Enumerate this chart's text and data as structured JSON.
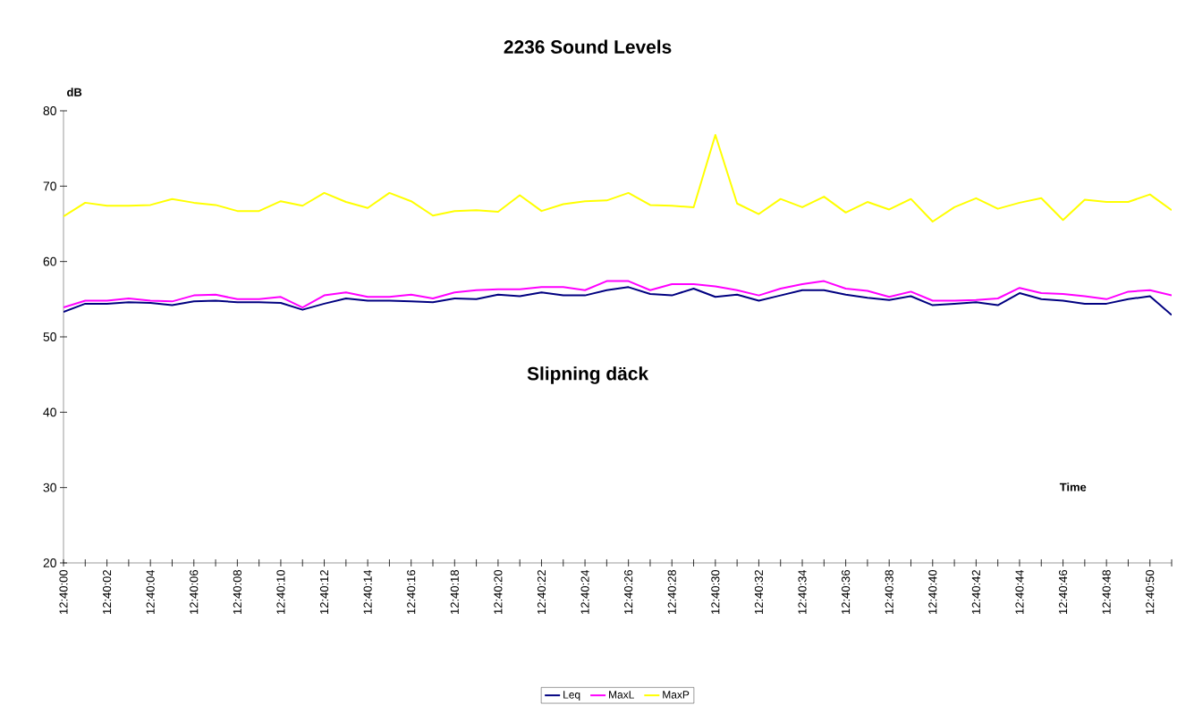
{
  "chart_data": {
    "type": "line",
    "title": "2236 Sound Levels",
    "ylabel": "dB",
    "xlabel": "Time",
    "annotations": [
      "Slipning däck"
    ],
    "categories": [
      "12:40:00",
      null,
      "12:40:02",
      null,
      "12:40:04",
      null,
      "12:40:06",
      null,
      "12:40:08",
      null,
      "12:40:10",
      null,
      "12:40:12",
      null,
      "12:40:14",
      null,
      "12:40:16",
      null,
      "12:40:18",
      null,
      "12:40:20",
      null,
      "12:40:22",
      null,
      "12:40:24",
      null,
      "12:40:26",
      null,
      "12:40:28",
      null,
      "12:40:30",
      null,
      "12:40:32",
      null,
      "12:40:34",
      null,
      "12:40:36",
      null,
      "12:40:38",
      null,
      "12:40:40",
      null,
      "12:40:42",
      null,
      "12:40:44",
      null,
      "12:40:46",
      null,
      "12:40:48",
      null,
      "12:40:50",
      null
    ],
    "series": [
      {
        "name": "Leq",
        "color": "#000080",
        "values": [
          53.3,
          54.4,
          54.4,
          54.6,
          54.5,
          54.2,
          54.7,
          54.8,
          54.6,
          54.6,
          54.5,
          53.6,
          54.4,
          55.1,
          54.8,
          54.8,
          54.7,
          54.6,
          55.1,
          55.0,
          55.6,
          55.4,
          55.9,
          55.5,
          55.5,
          56.2,
          56.6,
          55.7,
          55.5,
          56.4,
          55.3,
          55.6,
          54.8,
          55.5,
          56.2,
          56.2,
          55.6,
          55.2,
          54.9,
          55.4,
          54.2,
          54.4,
          54.6,
          54.2,
          55.8,
          55.0,
          54.8,
          54.4,
          54.4,
          55.0,
          55.4,
          52.9
        ]
      },
      {
        "name": "MaxL",
        "color": "#ff00ff",
        "values": [
          53.9,
          54.8,
          54.8,
          55.1,
          54.8,
          54.7,
          55.5,
          55.6,
          55.0,
          55.0,
          55.3,
          53.9,
          55.5,
          55.9,
          55.3,
          55.3,
          55.6,
          55.1,
          55.9,
          56.2,
          56.3,
          56.3,
          56.6,
          56.6,
          56.2,
          57.4,
          57.4,
          56.2,
          57.0,
          57.0,
          56.7,
          56.2,
          55.5,
          56.4,
          57.0,
          57.4,
          56.4,
          56.1,
          55.3,
          56.0,
          54.8,
          54.8,
          54.9,
          55.1,
          56.5,
          55.8,
          55.7,
          55.4,
          55.0,
          56.0,
          56.2,
          55.5
        ]
      },
      {
        "name": "MaxP",
        "color": "#ffff00",
        "values": [
          66.0,
          67.8,
          67.4,
          67.4,
          67.5,
          68.3,
          67.8,
          67.5,
          66.7,
          66.7,
          68.0,
          67.4,
          69.1,
          67.9,
          67.1,
          69.1,
          68.0,
          66.1,
          66.7,
          66.8,
          66.6,
          68.8,
          66.7,
          67.6,
          68.0,
          68.1,
          69.1,
          67.5,
          67.4,
          67.2,
          76.8,
          67.7,
          66.3,
          68.3,
          67.2,
          68.6,
          66.5,
          67.9,
          66.9,
          68.3,
          65.3,
          67.2,
          68.4,
          67.0,
          67.8,
          68.4,
          65.5,
          68.2,
          67.9,
          67.9,
          68.9,
          66.8
        ]
      }
    ],
    "ylim": [
      20,
      80
    ],
    "yticks": [
      20,
      30,
      40,
      50,
      60,
      70,
      80
    ],
    "grid": false,
    "legend": "bottom"
  }
}
